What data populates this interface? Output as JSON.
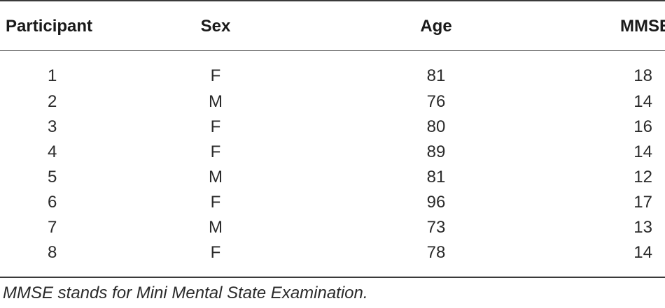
{
  "table": {
    "headers": [
      "Participant",
      "Sex",
      "Age",
      "MMSE"
    ],
    "rows": [
      [
        "1",
        "F",
        "81",
        "18"
      ],
      [
        "2",
        "M",
        "76",
        "14"
      ],
      [
        "3",
        "F",
        "80",
        "16"
      ],
      [
        "4",
        "F",
        "89",
        "14"
      ],
      [
        "5",
        "M",
        "81",
        "12"
      ],
      [
        "6",
        "F",
        "96",
        "17"
      ],
      [
        "7",
        "M",
        "73",
        "13"
      ],
      [
        "8",
        "F",
        "78",
        "14"
      ]
    ]
  },
  "footnote": "MMSE stands for Mini Mental State Examination."
}
